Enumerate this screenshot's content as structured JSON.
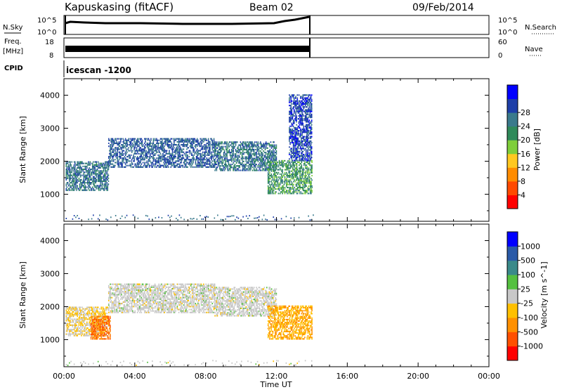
{
  "header": {
    "station": "Kapuskasing (fitACF)",
    "beam": "Beam 02",
    "date": "09/Feb/2014"
  },
  "top_panels": {
    "nsky_label": "N.Sky",
    "nsky_ticks": [
      "10^5",
      "10^0"
    ],
    "nsearch_label": "N.Search",
    "nsearch_ticks": [
      "10^5",
      "10^0"
    ],
    "freq_label_1": "Freq.",
    "freq_label_2": "[MHz]",
    "freq_ticks": [
      "18",
      "8"
    ],
    "nave_label": "Nave",
    "nave_ticks": [
      "60",
      "0"
    ],
    "cpid_label": "CPID",
    "cpid_value": "icescan -1200"
  },
  "axes": {
    "ylabel": "Slant Range [km]",
    "xlabel": "Time UT",
    "x_tick_labels": [
      "00:00",
      "04:00",
      "08:00",
      "12:00",
      "16:00",
      "20:00",
      "00:00"
    ],
    "y_tick_labels": [
      "1000",
      "2000",
      "3000",
      "4000"
    ]
  },
  "power_colorbar": {
    "label": "Power [dB]",
    "ticks": [
      "4",
      "8",
      "12",
      "16",
      "20",
      "24",
      "28"
    ],
    "colors": [
      "#0000ff",
      "#1e3fa8",
      "#3a7a8c",
      "#2f8a5a",
      "#7fce3a",
      "#ffc820",
      "#ff8c00",
      "#ff4a00",
      "#ff0000"
    ]
  },
  "velocity_colorbar": {
    "label": "Velocity [m s^-1]",
    "ticks": [
      "1000",
      "500",
      "100",
      "25",
      "-25",
      "-100",
      "-500",
      "-1000"
    ],
    "colors": [
      "#0000ff",
      "#2a5aa8",
      "#3a8a8a",
      "#55c040",
      "#c8c8c8",
      "#ffc000",
      "#ff9000",
      "#ff5000",
      "#ff0000"
    ]
  },
  "chart_data": {
    "type": "heatmap",
    "x_range_hours": [
      0,
      24
    ],
    "y_range_km": [
      180,
      4500
    ],
    "data_end_hour": 14.1,
    "power_echo_bands": [
      {
        "t_start": 0.1,
        "t_end": 2.5,
        "range_lo_km": 1100,
        "range_hi_km": 2000,
        "typical_power_db": 10
      },
      {
        "t_start": 2.5,
        "t_end": 8.5,
        "range_lo_km": 1800,
        "range_hi_km": 2700,
        "typical_power_db": 8
      },
      {
        "t_start": 8.5,
        "t_end": 12.0,
        "range_lo_km": 1700,
        "range_hi_km": 2600,
        "typical_power_db": 10
      },
      {
        "t_start": 11.5,
        "t_end": 14.0,
        "range_lo_km": 1000,
        "range_hi_km": 2000,
        "typical_power_db": 14
      },
      {
        "t_start": 12.7,
        "t_end": 14.0,
        "range_lo_km": 2000,
        "range_hi_km": 4000,
        "typical_power_db": 6
      }
    ],
    "velocity_echo_bands": [
      {
        "t_start": 0.1,
        "t_end": 2.5,
        "range_lo_km": 1100,
        "range_hi_km": 2000,
        "typical_velocity": -25
      },
      {
        "t_start": 2.5,
        "t_end": 8.5,
        "range_lo_km": 1800,
        "range_hi_km": 2700,
        "typical_velocity": 0
      },
      {
        "t_start": 8.5,
        "t_end": 12.0,
        "range_lo_km": 1700,
        "range_hi_km": 2600,
        "typical_velocity": 0
      },
      {
        "t_start": 11.5,
        "t_end": 14.0,
        "range_lo_km": 1000,
        "range_hi_km": 2000,
        "typical_velocity": -100
      },
      {
        "t_start": 1.5,
        "t_end": 2.6,
        "range_lo_km": 1000,
        "range_hi_km": 1700,
        "typical_velocity": -500
      }
    ]
  }
}
